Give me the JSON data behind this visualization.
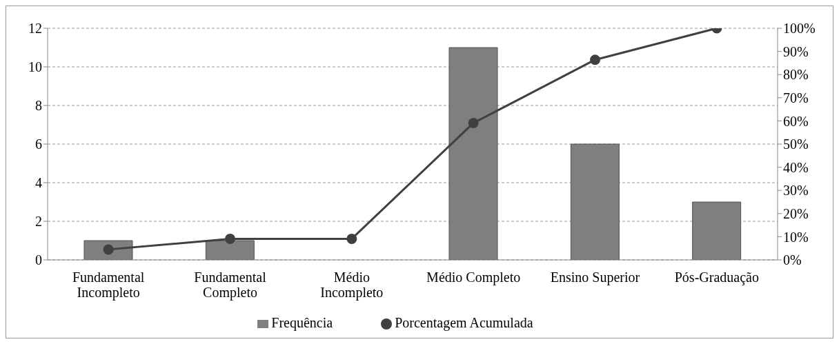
{
  "chart_data": {
    "type": "bar",
    "categories": [
      "Fundamental Incompleto",
      "Fundamental Completo",
      "Médio Incompleto",
      "Médio Completo",
      "Ensino Superior",
      "Pós-Graduação"
    ],
    "series": [
      {
        "name": "Frequência",
        "color": "#7f7f7f",
        "values": [
          1,
          1,
          0,
          11,
          6,
          3
        ]
      },
      {
        "name": "Porcentagem Acumulada",
        "type": "line",
        "axis": "y2",
        "color": "#404040",
        "marker": "circle",
        "values": [
          4.5,
          9.1,
          9.1,
          59.1,
          86.4,
          100
        ]
      }
    ],
    "ylim": [
      0,
      12
    ],
    "yticks": [
      0,
      2,
      4,
      6,
      8,
      10,
      12
    ],
    "y2lim": [
      0,
      100
    ],
    "y2ticks": [
      {
        "value": 0,
        "label": "0%"
      },
      {
        "value": 10,
        "label": "10%"
      },
      {
        "value": 20,
        "label": "20%"
      },
      {
        "value": 30,
        "label": "30%"
      },
      {
        "value": 40,
        "label": "40%"
      },
      {
        "value": 50,
        "label": "50%"
      },
      {
        "value": 60,
        "label": "60%"
      },
      {
        "value": 70,
        "label": "70%"
      },
      {
        "value": 80,
        "label": "80%"
      },
      {
        "value": 90,
        "label": "90%"
      },
      {
        "value": 100,
        "label": "100%"
      }
    ],
    "grid": "y",
    "legend": "bottom"
  }
}
